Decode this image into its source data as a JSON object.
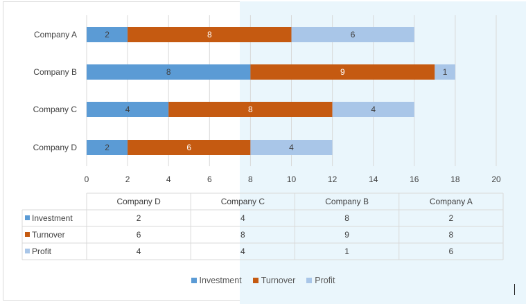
{
  "chart_data": {
    "type": "bar",
    "orientation": "horizontal",
    "stacked": true,
    "categories": [
      "Company A",
      "Company B",
      "Company C",
      "Company D"
    ],
    "series": [
      {
        "name": "Investment",
        "color": "#5b9bd5",
        "values": [
          2,
          8,
          4,
          2
        ]
      },
      {
        "name": "Turnover",
        "color": "#c55a11",
        "values": [
          8,
          9,
          8,
          6
        ]
      },
      {
        "name": "Profit",
        "color": "#a9c6e8",
        "values": [
          6,
          1,
          4,
          4
        ]
      }
    ],
    "xlim": [
      0,
      20
    ],
    "x_ticks": [
      "0",
      "2",
      "4",
      "6",
      "8",
      "10",
      "12",
      "14",
      "16",
      "18",
      "20"
    ],
    "grid": "vertical",
    "legend_position": "bottom",
    "data_table": {
      "columns": [
        "Company D",
        "Company C",
        "Company B",
        "Company A"
      ],
      "rows": [
        {
          "label": "Investment",
          "values": [
            "2",
            "4",
            "8",
            "2"
          ]
        },
        {
          "label": "Turnover",
          "values": [
            "6",
            "8",
            "9",
            "8"
          ]
        },
        {
          "label": "Profit",
          "values": [
            "4",
            "4",
            "1",
            "6"
          ]
        }
      ]
    }
  }
}
